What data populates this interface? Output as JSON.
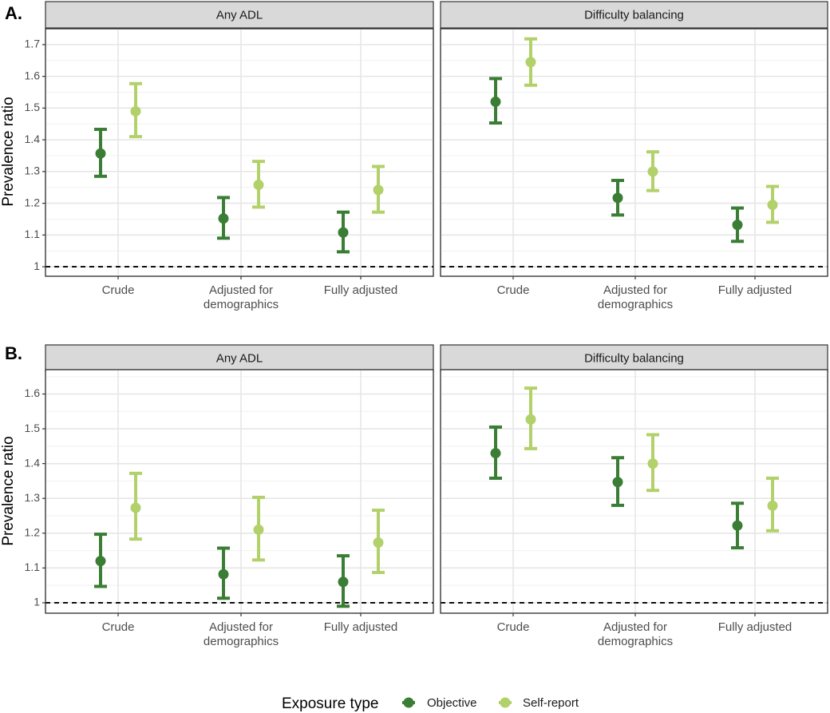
{
  "colors": {
    "Objective": "#3a7d34",
    "Self-report": "#b2d16a"
  },
  "legend": {
    "title": "Exposure type",
    "items": [
      {
        "name": "Objective",
        "color": "#3a7d34"
      },
      {
        "name": "Self-report",
        "color": "#b2d16a"
      }
    ]
  },
  "chart_data": [
    {
      "section": "A.",
      "type": "scatter",
      "ylabel": "Prevalence ratio",
      "ylim": [
        0.97,
        1.75
      ],
      "yticks": [
        "1",
        "1.1",
        "1.2",
        "1.3",
        "1.4",
        "1.5",
        "1.6",
        "1.7"
      ],
      "categories": [
        [
          "Crude"
        ],
        [
          "Adjusted for",
          "demographics"
        ],
        [
          "Fully adjusted"
        ]
      ],
      "reference_line": 1,
      "panels": [
        {
          "title": "Any ADL",
          "series": [
            {
              "name": "Objective",
              "estimate": [
                1.357,
                1.152,
                1.108
              ],
              "lower": [
                1.285,
                1.09,
                1.047
              ],
              "upper": [
                1.433,
                1.218,
                1.172
              ]
            },
            {
              "name": "Self-report",
              "estimate": [
                1.49,
                1.258,
                1.242
              ],
              "lower": [
                1.41,
                1.188,
                1.172
              ],
              "upper": [
                1.577,
                1.332,
                1.316
              ]
            }
          ]
        },
        {
          "title": "Difficulty balancing",
          "series": [
            {
              "name": "Objective",
              "estimate": [
                1.52,
                1.217,
                1.132
              ],
              "lower": [
                1.453,
                1.163,
                1.08
              ],
              "upper": [
                1.593,
                1.272,
                1.185
              ]
            },
            {
              "name": "Self-report",
              "estimate": [
                1.645,
                1.3,
                1.195
              ],
              "lower": [
                1.572,
                1.24,
                1.14
              ],
              "upper": [
                1.718,
                1.362,
                1.253
              ]
            }
          ]
        }
      ]
    },
    {
      "section": "B.",
      "type": "scatter",
      "ylabel": "Prevalence ratio",
      "ylim": [
        0.97,
        1.67
      ],
      "yticks": [
        "1",
        "1.1",
        "1.2",
        "1.3",
        "1.4",
        "1.5",
        "1.6"
      ],
      "categories": [
        [
          "Crude"
        ],
        [
          "Adjusted for",
          "demographics"
        ],
        [
          "Fully adjusted"
        ]
      ],
      "reference_line": 1,
      "panels": [
        {
          "title": "Any ADL",
          "series": [
            {
              "name": "Objective",
              "estimate": [
                1.12,
                1.082,
                1.06
              ],
              "lower": [
                1.047,
                1.013,
                0.99
              ],
              "upper": [
                1.197,
                1.157,
                1.135
              ]
            },
            {
              "name": "Self-report",
              "estimate": [
                1.273,
                1.21,
                1.173
              ],
              "lower": [
                1.183,
                1.123,
                1.087
              ],
              "upper": [
                1.372,
                1.303,
                1.266
              ]
            }
          ]
        },
        {
          "title": "Difficulty balancing",
          "series": [
            {
              "name": "Objective",
              "estimate": [
                1.43,
                1.347,
                1.222
              ],
              "lower": [
                1.358,
                1.28,
                1.158
              ],
              "upper": [
                1.505,
                1.417,
                1.286
              ]
            },
            {
              "name": "Self-report",
              "estimate": [
                1.527,
                1.4,
                1.279
              ],
              "lower": [
                1.443,
                1.323,
                1.207
              ],
              "upper": [
                1.617,
                1.483,
                1.358
              ]
            }
          ]
        }
      ]
    }
  ]
}
